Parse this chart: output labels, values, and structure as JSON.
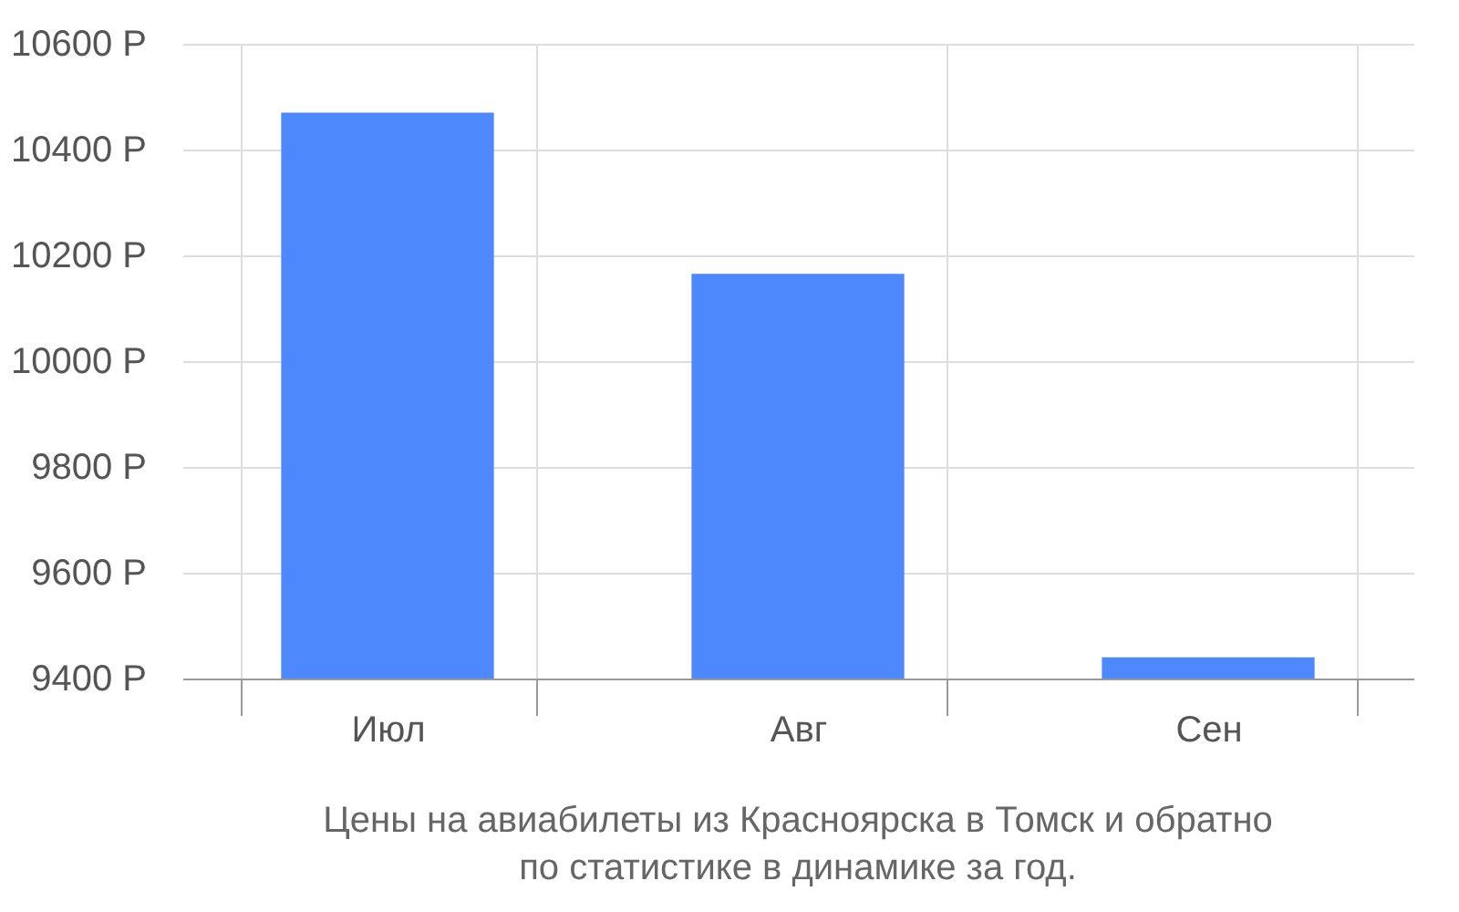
{
  "chart_data": {
    "type": "bar",
    "title": "Цены на авиабилеты из Красноярска в Томск и обратно по статистике в динамике за год.",
    "categories": [
      "Июл",
      "Авг",
      "Сен"
    ],
    "values": [
      10470,
      10165,
      9440
    ],
    "color": "#4d88fd",
    "ylim": [
      9400,
      10600
    ],
    "yticks": [
      {
        "value": 9400,
        "label": "9400 Р"
      },
      {
        "value": 9600,
        "label": "9600 Р"
      },
      {
        "value": 9800,
        "label": "9800 Р"
      },
      {
        "value": 10000,
        "label": "10000 Р"
      },
      {
        "value": 10200,
        "label": "10200 Р"
      },
      {
        "value": 10400,
        "label": "10400 Р"
      },
      {
        "value": 10600,
        "label": "10600 Р"
      }
    ],
    "grid": true
  }
}
